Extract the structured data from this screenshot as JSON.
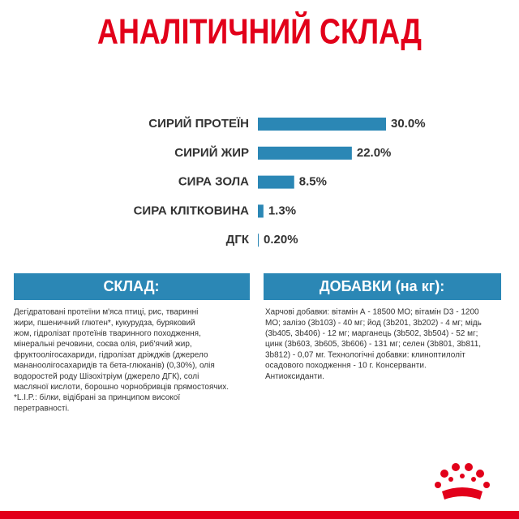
{
  "chart_data": {
    "type": "bar",
    "orientation": "horizontal",
    "title": "АНАЛІТИЧНИЙ СКЛАД",
    "categories": [
      "СИРИЙ ПРОТЕЇН",
      "СИРИЙ ЖИР",
      "СИРА ЗОЛА",
      "СИРА КЛІТКОВИНА",
      "ДГК"
    ],
    "values": [
      30.0,
      22.0,
      8.5,
      1.3,
      0.2
    ],
    "value_labels": [
      "30.0%",
      "22.0%",
      "8.5%",
      "1.3%",
      "0.20%"
    ],
    "color": "#2b87b5"
  },
  "composition": {
    "title": "СКЛАД:",
    "lines": [
      "Дегідратовані протеїни м'яса птиці, рис, тваринні",
      "жири, пшеничний глютен*, кукурудза, буряковий",
      "жом, гідролізат протеїнів тваринного походження,",
      "мінеральні речовини, соєва олія, риб'ячий жир,",
      "фруктоолігосахариди, гідролізат дріжджів (джерело",
      "мананоолігосахаридів та бета-глюканів) (0,30%), олія",
      "водоростей роду Шізохітріум (джерело ДГК), солі",
      "масляної кислоти, борошно чорнобривців прямостоячих.",
      "*L.I.P.: білки, відібрані за принципом високої",
      "перетравності."
    ]
  },
  "additives": {
    "title": "ДОБАВКИ (на кг):",
    "lines": [
      "Харчові добавки: вітамін А - 18500 МО; вітамін D3 - 1200",
      "МО; залізо (3b103) - 40 мг; йод (3b201, 3b202) - 4 мг; мідь",
      "(3b405, 3b406) - 12 мг; марганець (3b502, 3b504) - 52 мг;",
      "цинк (3b603, 3b605, 3b606) - 131 мг; селен (3b801, 3b811,",
      "3b812) - 0,07 мг. Технологічні добавки: клиноптилоліт",
      "осадового походження - 10 г. Консерванти.",
      "Антиоксиданти."
    ]
  }
}
